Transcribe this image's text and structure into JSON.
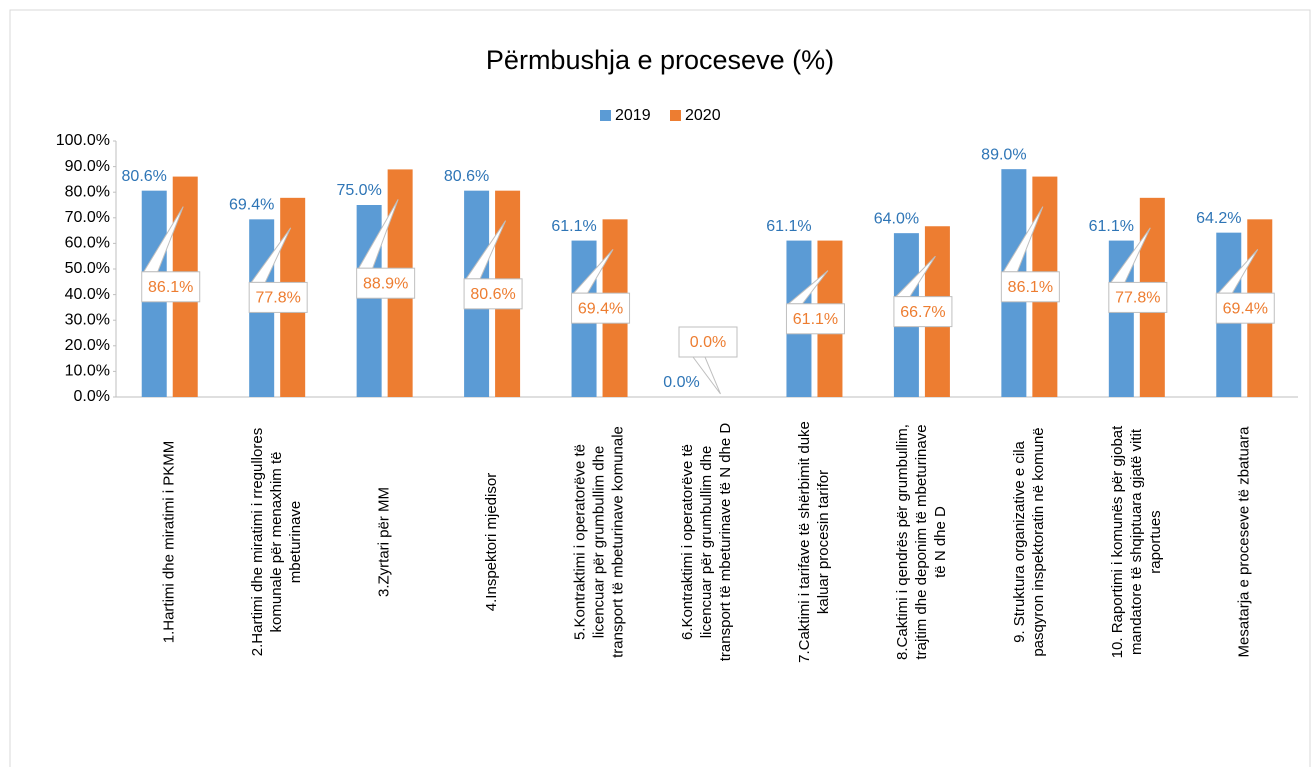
{
  "chart_data": {
    "type": "bar",
    "title": "Përmbushja e proceseve (%)",
    "categories": [
      "1.Hartimi dhe miratimi i PKMM",
      "2.Hartimi dhe miratimi i rregullores komunale për menaxhim të mbeturinave",
      "3.Zyrtari për MM",
      "4.Inspektori mjedisor",
      "5.Kontraktimi i operatorëve të licencuar për grumbullim dhe transport të mbeturinave komunale",
      "6.Kontraktimi i operatorëve të licencuar për grumbullim dhe transport të mbeturinave të N dhe D",
      "7.Caktimi i tarifave të shërbimit duke kaluar procesin tarifor",
      "8.Caktimi i qendrës për grumbullim, trajtim dhe deponim të mbeturinave të N dhe D",
      "9. Struktura organizative e cila pasqyron inspektoratin në komunë",
      "10. Raportimi i komunës për gjobat mandatore të shqiptuara gjatë vitit raportues",
      "Mesatarja e proceseve të zbatuara"
    ],
    "series": [
      {
        "name": "2019",
        "color": "#5b9bd5",
        "values": [
          80.6,
          69.4,
          75.0,
          80.6,
          61.1,
          0.0,
          61.1,
          64.0,
          89.0,
          61.1,
          64.2
        ],
        "value_labels": [
          "80.6%",
          "69.4%",
          "75.0%",
          "80.6%",
          "61.1%",
          "0.0%",
          "61.1%",
          "64.0%",
          "89.0%",
          "61.1%",
          "64.2%"
        ]
      },
      {
        "name": "2020",
        "color": "#ed7d31",
        "values": [
          86.1,
          77.8,
          88.9,
          80.6,
          69.4,
          0.0,
          61.1,
          66.7,
          86.1,
          77.8,
          69.4
        ],
        "value_labels": [
          "86.1%",
          "77.8%",
          "88.9%",
          "80.6%",
          "69.4%",
          "0.0%",
          "61.1%",
          "66.7%",
          "86.1%",
          "77.8%",
          "69.4%"
        ]
      }
    ],
    "ylim": [
      0,
      100
    ],
    "yticks": [
      {
        "value": 0,
        "label": "0.0%"
      },
      {
        "value": 10,
        "label": "10.0%"
      },
      {
        "value": 20,
        "label": "20.0%"
      },
      {
        "value": 30,
        "label": "30.0%"
      },
      {
        "value": 40,
        "label": "40.0%"
      },
      {
        "value": 50,
        "label": "50.0%"
      },
      {
        "value": 60,
        "label": "60.0%"
      },
      {
        "value": 70,
        "label": "70.0%"
      },
      {
        "value": 80,
        "label": "80.0%"
      },
      {
        "value": 90,
        "label": "90.0%"
      },
      {
        "value": 100,
        "label": "100.0%"
      }
    ],
    "legend": "top"
  }
}
